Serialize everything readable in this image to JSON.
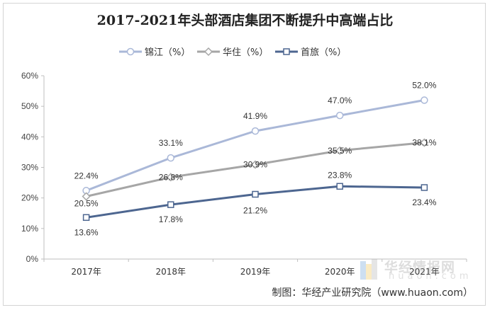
{
  "chart_data": {
    "type": "line",
    "title": "2017-2021年头部酒店集团不断提升中高端占比",
    "categories": [
      "2017年",
      "2018年",
      "2019年",
      "2020年",
      "2021年"
    ],
    "ylim": [
      0,
      60
    ],
    "yticks": [
      "0%",
      "10%",
      "20%",
      "30%",
      "40%",
      "50%",
      "60%"
    ],
    "grid": false,
    "legend_position": "top",
    "series": [
      {
        "name": "锦江（%）",
        "values": [
          22.4,
          33.1,
          41.9,
          47.0,
          52.0
        ],
        "labels": [
          "22.4%",
          "33.1%",
          "41.9%",
          "47.0%",
          "52.0%"
        ],
        "color": "#aab8d8",
        "marker": "circle"
      },
      {
        "name": "华住（%）",
        "values": [
          20.5,
          26.8,
          30.9,
          35.5,
          38.1
        ],
        "labels": [
          "20.5%",
          "26.8%",
          "30.9%",
          "35.5%",
          "38.1%"
        ],
        "color": "#a6a6a6",
        "marker": "diamond"
      },
      {
        "name": "首旅（%）",
        "values": [
          13.6,
          17.8,
          21.2,
          23.8,
          23.4
        ],
        "labels": [
          "13.6%",
          "17.8%",
          "21.2%",
          "23.8%",
          "23.4%"
        ],
        "color": "#4d6690",
        "marker": "square"
      }
    ]
  },
  "source": "制图：华经产业研究院（www.huaon.com）",
  "watermark": {
    "text": "华经情报网",
    "sub": "huaon.com"
  }
}
